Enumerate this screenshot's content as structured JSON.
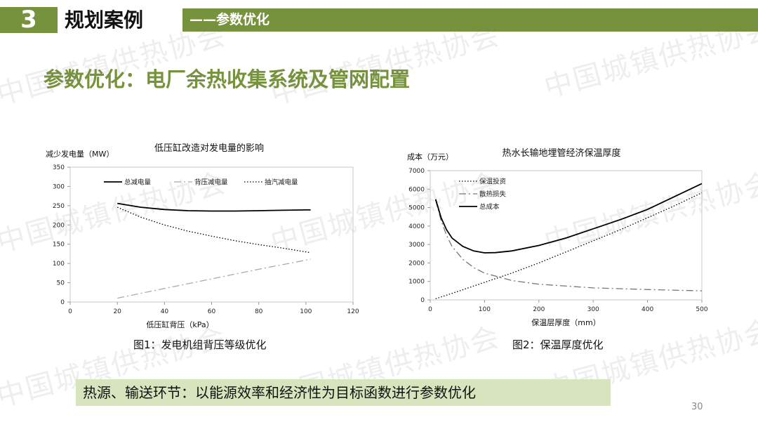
{
  "header": {
    "number": "3",
    "title": "规划案例",
    "subtitle": "——参数优化"
  },
  "page_title": "参数优化：电厂余热收集系统及管网配置",
  "watermark": "中国城镇供热协会",
  "chart_data": [
    {
      "type": "line",
      "title": "低压缸改造对发电量的影响",
      "xlabel": "低压缸背压（kPa）",
      "ylabel": "减少发电量（MW）",
      "xlim": [
        0,
        120
      ],
      "ylim": [
        0,
        350
      ],
      "xticks": [
        0,
        20,
        40,
        60,
        80,
        100,
        120
      ],
      "yticks": [
        0,
        50,
        100,
        150,
        200,
        250,
        300,
        350
      ],
      "grid": false,
      "legend": "top",
      "series": [
        {
          "name": "总减电量",
          "style": "solid",
          "color": "#000000",
          "x": [
            20,
            30,
            40,
            50,
            60,
            70,
            80,
            90,
            100,
            102
          ],
          "y": [
            256,
            246,
            240,
            237,
            236,
            236,
            237,
            238,
            239,
            239
          ]
        },
        {
          "name": "背压减电量",
          "style": "dashdot",
          "color": "#aaaaaa",
          "x": [
            20,
            40,
            60,
            80,
            102
          ],
          "y": [
            10,
            35,
            60,
            85,
            111
          ]
        },
        {
          "name": "抽汽减电量",
          "style": "dotted",
          "color": "#000000",
          "x": [
            20,
            30,
            40,
            50,
            60,
            70,
            80,
            90,
            100,
            102
          ],
          "y": [
            246,
            220,
            200,
            184,
            171,
            159,
            149,
            140,
            130,
            128
          ]
        }
      ]
    },
    {
      "type": "line",
      "title": "热水长输地埋管经济保温厚度",
      "xlabel": "保温层厚度（mm）",
      "ylabel": "成本（万元）",
      "xlim": [
        0,
        500
      ],
      "ylim": [
        0,
        7000
      ],
      "xticks": [
        0,
        100,
        200,
        300,
        400,
        500
      ],
      "yticks": [
        0,
        1000,
        2000,
        3000,
        4000,
        5000,
        6000,
        7000
      ],
      "grid": false,
      "legend": "top-left",
      "series": [
        {
          "name": "保温投资",
          "style": "dotted",
          "color": "#000000",
          "x": [
            10,
            50,
            100,
            150,
            200,
            250,
            300,
            350,
            400,
            450,
            500
          ],
          "y": [
            60,
            450,
            950,
            1450,
            2000,
            2600,
            3200,
            3800,
            4450,
            5100,
            5800
          ]
        },
        {
          "name": "散热损失",
          "style": "dashdot",
          "color": "#777777",
          "x": [
            10,
            20,
            30,
            40,
            60,
            80,
            100,
            150,
            200,
            300,
            400,
            500
          ],
          "y": [
            5400,
            4300,
            3500,
            2900,
            2200,
            1750,
            1450,
            1050,
            850,
            650,
            560,
            490
          ]
        },
        {
          "name": "总成本",
          "style": "solid",
          "color": "#000000",
          "x": [
            10,
            20,
            30,
            40,
            60,
            80,
            100,
            120,
            150,
            200,
            250,
            300,
            350,
            400,
            450,
            500
          ],
          "y": [
            5450,
            4450,
            3800,
            3350,
            2900,
            2650,
            2550,
            2560,
            2650,
            2950,
            3350,
            3850,
            4350,
            4900,
            5600,
            6300
          ]
        }
      ]
    }
  ],
  "captions": {
    "fig1": "图1：发电机组背压等级优化",
    "fig2": "图2：保温厚度优化"
  },
  "bottom_text": "热源、输送环节：以能源效率和经济性为目标函数进行参数优化",
  "page_number": "30",
  "colors": {
    "accent": "#76923c",
    "bottom_bar": "#d7e4bd"
  }
}
